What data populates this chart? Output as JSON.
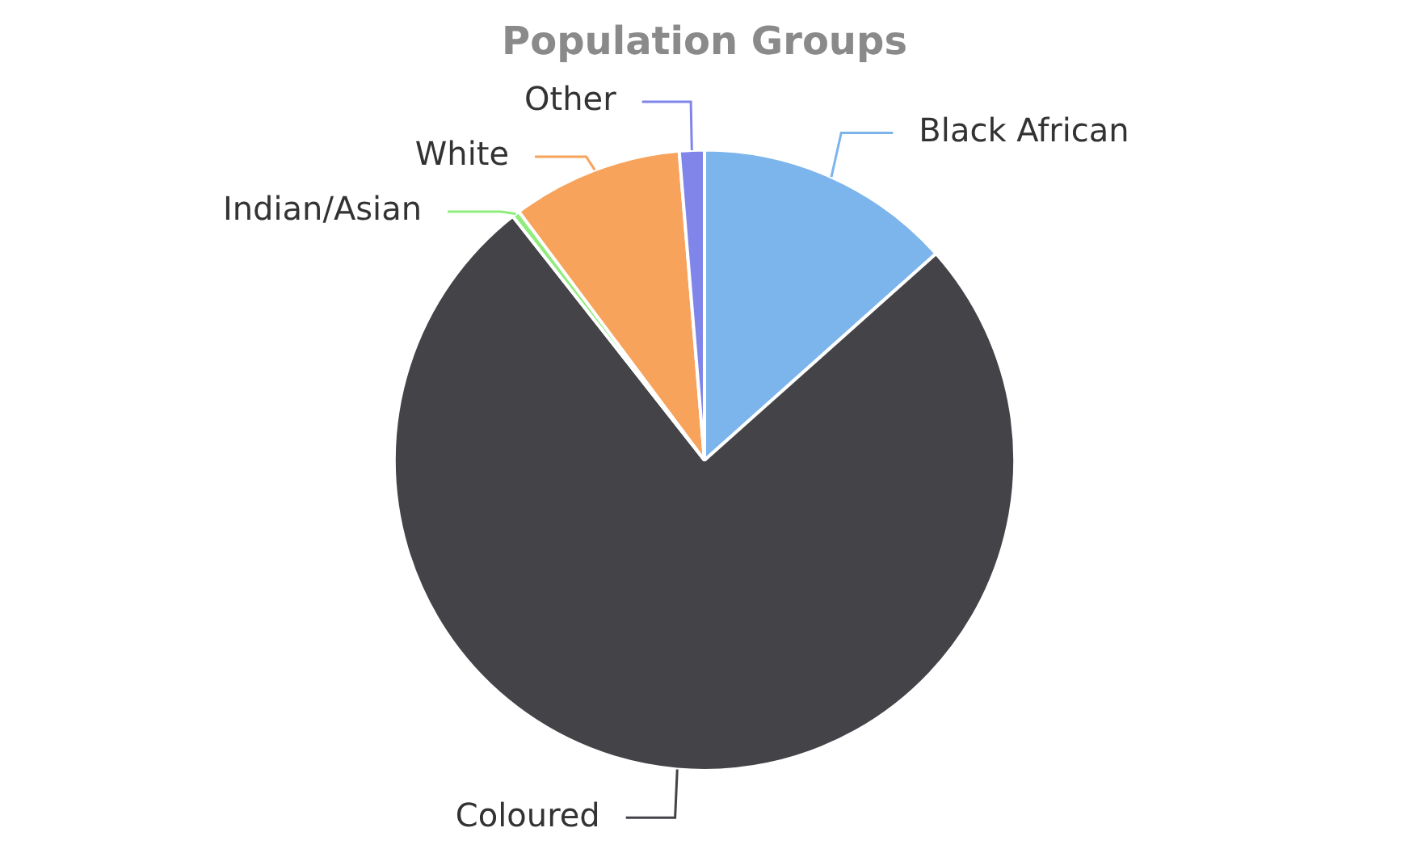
{
  "chart_data": {
    "type": "pie",
    "title": "Population Groups",
    "categories": [
      "Black African",
      "Coloured",
      "Indian/Asian",
      "White",
      "Other"
    ],
    "values": [
      13.4,
      76.0,
      0.4,
      8.9,
      1.3
    ],
    "colors": [
      "#7cb5ec",
      "#434348",
      "#90ed7d",
      "#f7a35c",
      "#8085e9"
    ],
    "legend": false
  }
}
